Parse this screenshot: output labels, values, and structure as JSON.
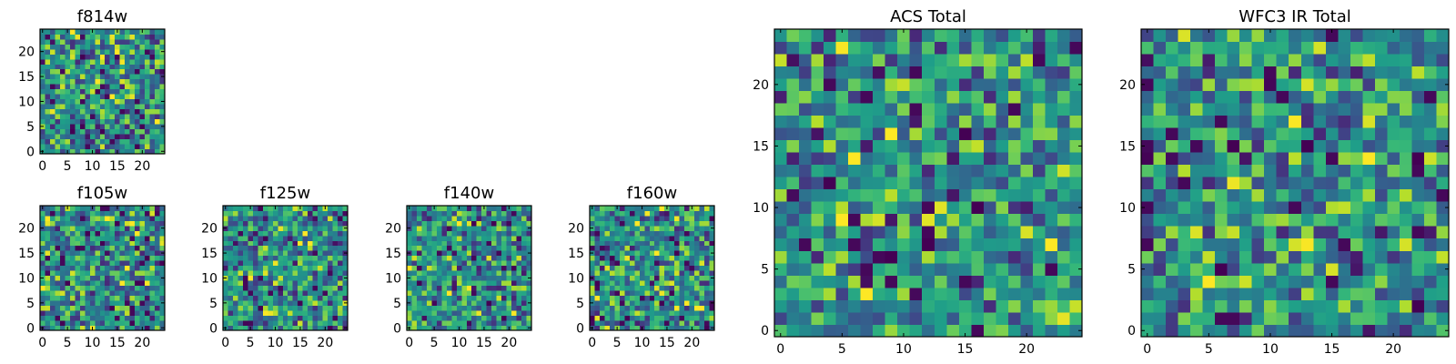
{
  "chart_data": [
    {
      "type": "heatmap",
      "title": "f814w",
      "grid_size": 25,
      "pixel_scale": 1,
      "seed": 11,
      "colormap": "viridis",
      "xlim": [
        0,
        24
      ],
      "ylim": [
        0,
        24
      ],
      "xticks": [
        0,
        5,
        10,
        15,
        20
      ],
      "yticks": [
        0,
        5,
        10,
        15,
        20
      ]
    },
    {
      "type": "heatmap",
      "title": "f105w",
      "grid_size": 25,
      "pixel_scale": 1,
      "seed": 23,
      "colormap": "viridis",
      "xlim": [
        0,
        24
      ],
      "ylim": [
        0,
        24
      ],
      "xticks": [
        0,
        5,
        10,
        15,
        20
      ],
      "yticks": [
        0,
        5,
        10,
        15,
        20
      ]
    },
    {
      "type": "heatmap",
      "title": "f125w",
      "grid_size": 25,
      "pixel_scale": 1,
      "seed": 37,
      "colormap": "viridis",
      "xlim": [
        0,
        24
      ],
      "ylim": [
        0,
        24
      ],
      "xticks": [
        0,
        5,
        10,
        15,
        20
      ],
      "yticks": [
        0,
        5,
        10,
        15,
        20
      ]
    },
    {
      "type": "heatmap",
      "title": "f140w",
      "grid_size": 25,
      "pixel_scale": 1,
      "seed": 41,
      "colormap": "viridis",
      "xlim": [
        0,
        24
      ],
      "ylim": [
        0,
        24
      ],
      "xticks": [
        0,
        5,
        10,
        15,
        20
      ],
      "yticks": [
        0,
        5,
        10,
        15,
        20
      ]
    },
    {
      "type": "heatmap",
      "title": "f160w",
      "grid_size": 25,
      "pixel_scale": 1,
      "seed": 53,
      "colormap": "viridis",
      "xlim": [
        0,
        24
      ],
      "ylim": [
        0,
        24
      ],
      "xticks": [
        0,
        5,
        10,
        15,
        20
      ],
      "yticks": [
        0,
        5,
        10,
        15,
        20
      ]
    },
    {
      "type": "heatmap",
      "title": "ACS Total",
      "grid_size": 25,
      "pixel_scale": 1,
      "seed": 67,
      "colormap": "viridis",
      "xlim": [
        0,
        24
      ],
      "ylim": [
        0,
        24
      ],
      "xticks": [
        0,
        5,
        10,
        15,
        20
      ],
      "yticks": [
        0,
        5,
        10,
        15,
        20
      ]
    },
    {
      "type": "heatmap",
      "title": "WFC3 IR Total",
      "grid_size": 25,
      "pixel_scale": 1,
      "seed": 79,
      "colormap": "viridis",
      "xlim": [
        0,
        24
      ],
      "ylim": [
        0,
        24
      ],
      "xticks": [
        0,
        5,
        10,
        15,
        20
      ],
      "yticks": [
        0,
        5,
        10,
        15,
        20
      ]
    }
  ]
}
